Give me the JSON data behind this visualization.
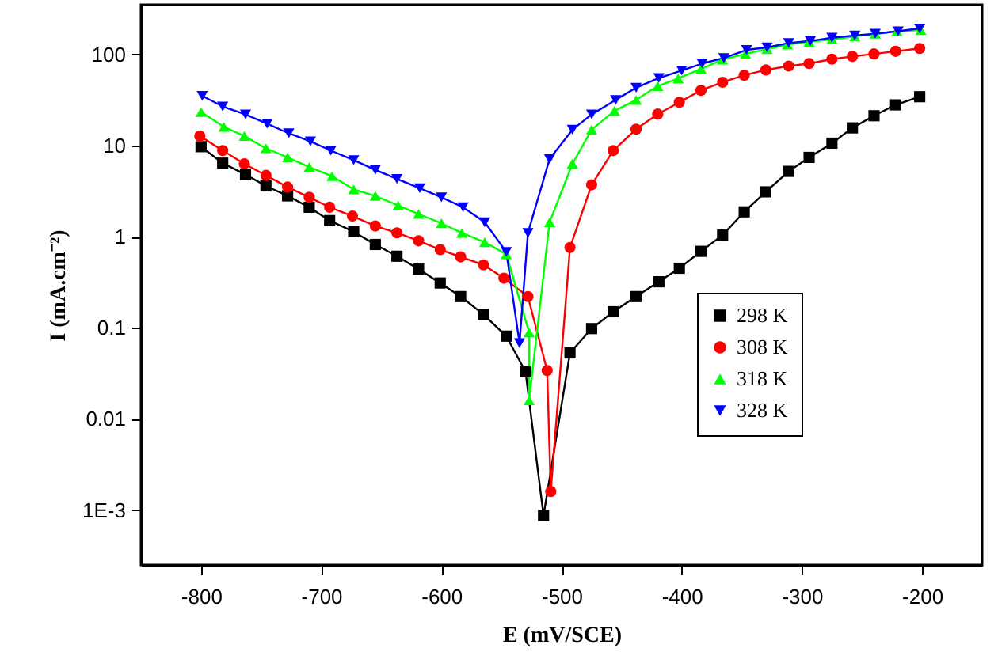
{
  "chart_data": {
    "type": "line",
    "xlabel": "E (mV/SCE)",
    "ylabel": "I (mA.cm⁻²)",
    "log": "y",
    "xlim": [
      -850,
      -150
    ],
    "ylim": [
      0.00025,
      350
    ],
    "xticks": [
      -800,
      -700,
      -600,
      -500,
      -400,
      -300,
      -200
    ],
    "yticks": [
      {
        "value": 0.001,
        "label": "1E-3"
      },
      0.01,
      0.1,
      1,
      10,
      100
    ],
    "grid": false,
    "legend": "bottom right",
    "line_style": "solid",
    "series": [
      {
        "name": "298 K",
        "color": "#000000",
        "marker": "square",
        "x": [
          -800,
          -782,
          -763,
          -746,
          -728,
          -710,
          -693,
          -673,
          -655,
          -637,
          -619,
          -601,
          -584,
          -565,
          -546,
          -530,
          -515,
          -493,
          -475,
          -457,
          -438,
          -419,
          -402,
          -384,
          -366,
          -348,
          -330,
          -311,
          -294,
          -275,
          -258,
          -240,
          -222,
          -202
        ],
        "values": [
          9.7,
          6.4,
          4.8,
          3.6,
          2.8,
          2.1,
          1.5,
          1.13,
          0.82,
          0.61,
          0.44,
          0.31,
          0.22,
          0.14,
          0.081,
          0.033,
          0.00087,
          0.053,
          0.098,
          0.15,
          0.22,
          0.32,
          0.45,
          0.69,
          1.04,
          1.87,
          3.1,
          5.2,
          7.4,
          10.6,
          15.6,
          21.2,
          27.9,
          34.3
        ]
      },
      {
        "name": "308 K",
        "color": "#ff0000",
        "marker": "circle",
        "x": [
          -801,
          -782,
          -764,
          -746,
          -728,
          -710,
          -693,
          -674,
          -655,
          -637,
          -619,
          -601,
          -584,
          -565,
          -548,
          -528,
          -512,
          -509,
          -493,
          -475,
          -457,
          -438,
          -420,
          -402,
          -384,
          -366,
          -348,
          -330,
          -311,
          -294,
          -275,
          -258,
          -240,
          -222,
          -202
        ],
        "values": [
          12.7,
          8.8,
          6.3,
          4.7,
          3.5,
          2.7,
          2.1,
          1.68,
          1.31,
          1.1,
          0.9,
          0.72,
          0.6,
          0.49,
          0.35,
          0.22,
          0.034,
          0.0016,
          0.76,
          3.7,
          8.8,
          15.1,
          22.1,
          29.8,
          40.3,
          49.4,
          58.9,
          67.4,
          74.3,
          79.3,
          88.5,
          94.8,
          101,
          108,
          116
        ]
      },
      {
        "name": "318 K",
        "color": "#00ff00",
        "marker": "triangle",
        "x": [
          -800,
          -781,
          -764,
          -746,
          -728,
          -710,
          -691,
          -673,
          -655,
          -636,
          -619,
          -600,
          -583,
          -564,
          -546,
          -527,
          -527,
          -510,
          -491,
          -475,
          -456,
          -438,
          -420,
          -403,
          -384,
          -366,
          -347,
          -329,
          -312,
          -294,
          -275,
          -256,
          -239,
          -221,
          -201
        ],
        "values": [
          23.3,
          16,
          12.7,
          9.3,
          7.4,
          5.8,
          4.6,
          3.3,
          2.8,
          2.2,
          1.77,
          1.4,
          1.1,
          0.87,
          0.64,
          0.089,
          0.016,
          1.44,
          6.3,
          14.9,
          24,
          31.6,
          44.8,
          54.3,
          69.3,
          87.5,
          101,
          114,
          128,
          137,
          146,
          157,
          168,
          179,
          184
        ]
      },
      {
        "name": "328 K",
        "color": "#0000ff",
        "marker": "triangle-down",
        "x": [
          -799,
          -782,
          -763,
          -745,
          -727,
          -709,
          -692,
          -673,
          -655,
          -637,
          -618,
          -600,
          -582,
          -564,
          -546,
          -535,
          -528,
          -510,
          -491,
          -475,
          -455,
          -438,
          -419,
          -400,
          -383,
          -365,
          -346,
          -329,
          -311,
          -293,
          -275,
          -256,
          -239,
          -220,
          -202
        ],
        "values": [
          35,
          26.8,
          21.9,
          17.3,
          13.6,
          11.1,
          8.8,
          6.9,
          5.4,
          4.3,
          3.4,
          2.7,
          2.1,
          1.44,
          0.68,
          0.068,
          1.1,
          7.1,
          14.9,
          21.9,
          31.6,
          43,
          55,
          66.5,
          79.3,
          91,
          112,
          119,
          133,
          140,
          152,
          161,
          168,
          179,
          192
        ]
      }
    ]
  }
}
